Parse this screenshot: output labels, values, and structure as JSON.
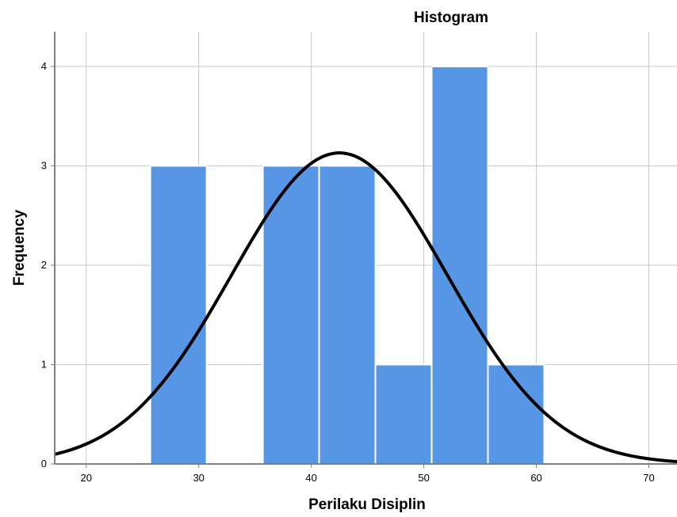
{
  "chart_data": {
    "type": "bar",
    "title": "Histogram",
    "xlabel": "Perilaku Disiplin",
    "ylabel": "Frequency",
    "bins": [
      {
        "x0": 25.7,
        "x1": 30.7,
        "count": 3
      },
      {
        "x0": 35.7,
        "x1": 40.7,
        "count": 3
      },
      {
        "x0": 40.7,
        "x1": 45.7,
        "count": 3
      },
      {
        "x0": 45.7,
        "x1": 50.7,
        "count": 1
      },
      {
        "x0": 50.7,
        "x1": 55.7,
        "count": 4
      },
      {
        "x0": 55.7,
        "x1": 60.7,
        "count": 1
      }
    ],
    "normal_curve": {
      "mean": 42.5,
      "std": 9.6,
      "peak": 3.13
    },
    "xticks": [
      "20",
      "30",
      "40",
      "50",
      "60",
      "70"
    ],
    "yticks": [
      "0",
      "1",
      "2",
      "3",
      "4"
    ],
    "xlim": [
      17.2,
      72.5
    ],
    "ylim": [
      0,
      4.35
    ],
    "grid": true,
    "colors": {
      "bar": "#5795e5",
      "bar_edge": "#ffffff",
      "curve": "#000000",
      "grid": "#c8c8c8",
      "axis": "#808080"
    }
  }
}
